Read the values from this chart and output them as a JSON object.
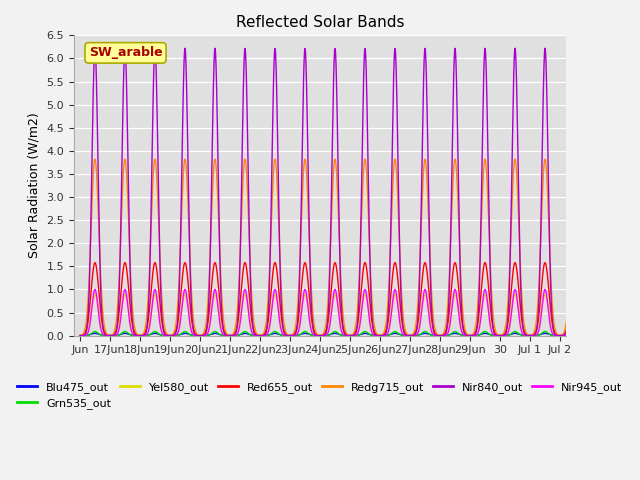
{
  "title": "Reflected Solar Bands",
  "ylabel": "Solar Radiation (W/m2)",
  "annotation": "SW_arable",
  "ylim": [
    0,
    6.5
  ],
  "yticks": [
    0.0,
    0.5,
    1.0,
    1.5,
    2.0,
    2.5,
    3.0,
    3.5,
    4.0,
    4.5,
    5.0,
    5.5,
    6.0,
    6.5
  ],
  "peak_values": {
    "Blu475_out": 0.05,
    "Grn535_out": 0.09,
    "Yel580_out": 0.88,
    "Red655_out": 1.58,
    "Redg715_out": 3.82,
    "Nir840_out": 6.22,
    "Nir945_out": 1.0
  },
  "pulse_widths": {
    "Blu475_out": 0.13,
    "Grn535_out": 0.1,
    "Yel580_out": 0.13,
    "Red655_out": 0.13,
    "Redg715_out": 0.13,
    "Nir840_out": 0.1,
    "Nir945_out": 0.1
  },
  "colors": {
    "Blu475_out": "#0000ff",
    "Grn535_out": "#00dd00",
    "Yel580_out": "#dddd00",
    "Red655_out": "#ff0000",
    "Redg715_out": "#ff8800",
    "Nir840_out": "#aa00cc",
    "Nir945_out": "#ff00ff"
  },
  "plot_order": [
    "Blu475_out",
    "Grn535_out",
    "Yel580_out",
    "Red655_out",
    "Redg715_out",
    "Nir945_out",
    "Nir840_out"
  ],
  "legend_order": [
    "Blu475_out",
    "Grn535_out",
    "Yel580_out",
    "Red655_out",
    "Redg715_out",
    "Nir840_out",
    "Nir945_out"
  ],
  "num_days": 17,
  "xtick_labels": [
    "Jun",
    "17Jun",
    "18Jun",
    "19Jun",
    "20Jun",
    "21Jun",
    "22Jun",
    "23Jun",
    "24Jun",
    "25Jun",
    "26Jun",
    "27Jun",
    "28Jun",
    "29Jun",
    "30",
    "Jul 1",
    "Jul 2"
  ],
  "xtick_positions": [
    0,
    1,
    2,
    3,
    4,
    5,
    6,
    7,
    8,
    9,
    10,
    11,
    12,
    13,
    14,
    15,
    16
  ],
  "plot_bg_color": "#e0e0e0",
  "fig_bg_color": "#f2f2f2",
  "grid_color": "#ffffff",
  "annotation_bg": "#ffff99",
  "annotation_fg": "#aa0000",
  "annotation_border": "#aaaa00",
  "linewidth": 1.0
}
